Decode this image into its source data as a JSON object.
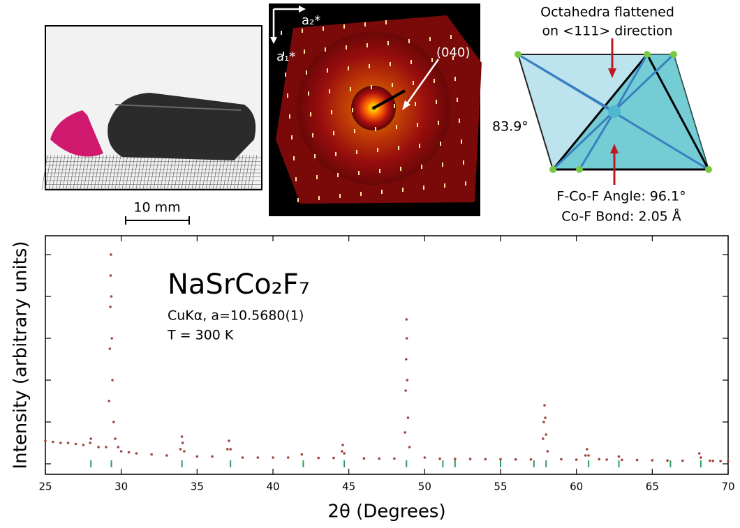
{
  "chart_data": {
    "type": "scatter",
    "xlabel": "2θ (Degrees)",
    "ylabel": "Intensity (arbitrary units)",
    "annotations": [
      "NaSrCo₂F₇",
      "CuKα, a=10.5680(1)",
      "T = 300 K"
    ],
    "xlim": [
      25,
      70
    ],
    "xticks": [
      25,
      30,
      35,
      40,
      45,
      50,
      55,
      60,
      65,
      70
    ],
    "ylim": [
      -5,
      109
    ],
    "yticks": [
      0,
      20,
      40,
      60,
      80,
      100
    ],
    "series": [
      {
        "color": "#a0443a",
        "x": [
          25,
          25.5,
          26,
          26.5,
          27,
          27.5,
          27.95,
          28.0,
          28.5,
          29,
          29.2,
          29.25,
          29.28,
          29.3,
          29.32,
          29.35,
          29.38,
          29.42,
          29.5,
          29.6,
          29.8,
          30,
          30.5,
          31,
          32,
          33,
          33.9,
          34.0,
          34.05,
          34.15,
          35,
          36,
          37.0,
          37.1,
          37.2,
          38,
          39,
          40,
          41,
          41.9,
          43,
          44,
          44.55,
          44.6,
          44.7,
          46,
          47,
          48,
          48.7,
          48.75,
          48.78,
          48.8,
          48.82,
          48.85,
          48.9,
          49.0,
          50,
          51,
          52,
          53,
          54,
          55,
          56,
          57,
          57.8,
          57.85,
          57.9,
          57.95,
          58.0,
          58.1,
          59,
          60,
          60.6,
          60.7,
          60.8,
          61.5,
          62,
          62.8,
          63,
          64,
          65,
          66,
          67,
          68.1,
          68.2,
          68.8,
          69,
          69.5,
          70
        ],
        "values": [
          11,
          10.5,
          10,
          10,
          9.5,
          9,
          10,
          12,
          8,
          8,
          30,
          55,
          75,
          90,
          100,
          80,
          60,
          40,
          20,
          12,
          8,
          6,
          5.5,
          5,
          4.5,
          4,
          7,
          13,
          10,
          6,
          3.5,
          3.5,
          7,
          11,
          7,
          3,
          3,
          3,
          3,
          4.5,
          2.8,
          2.8,
          6,
          9,
          5,
          2.6,
          2.5,
          2.5,
          15,
          35,
          50,
          69,
          60,
          40,
          22,
          8,
          3,
          2.4,
          2.3,
          2.3,
          2.2,
          2.2,
          2.1,
          2.1,
          12,
          20,
          28,
          22,
          14,
          6,
          2.2,
          2,
          4,
          7,
          4,
          2.2,
          2,
          3.5,
          1.9,
          1.8,
          1.7,
          1.6,
          1.5,
          5,
          3,
          1.5,
          1.4,
          1.3,
          1.3
        ]
      }
    ],
    "reflections": {
      "color": "#2a9d5c",
      "x": [
        28.0,
        29.35,
        34.0,
        37.2,
        42.0,
        44.7,
        48.8,
        51.2,
        52.0,
        55.0,
        57.2,
        58.0,
        60.8,
        62.8,
        66.2,
        68.2
      ]
    }
  },
  "photo": {
    "scale_label": "10 mm"
  },
  "diffraction": {
    "axis_1": "a₁*",
    "axis_2": "a₂*",
    "peak_label": "(040)"
  },
  "octahedron": {
    "title_line_1": "Octahedra flattened",
    "title_line_2": "on <111> direction",
    "angle_label": "83.9°",
    "caption_line_1": "F-Co-F Angle: 96.1°",
    "caption_line_2": "Co-F Bond: 2.05 Å"
  }
}
